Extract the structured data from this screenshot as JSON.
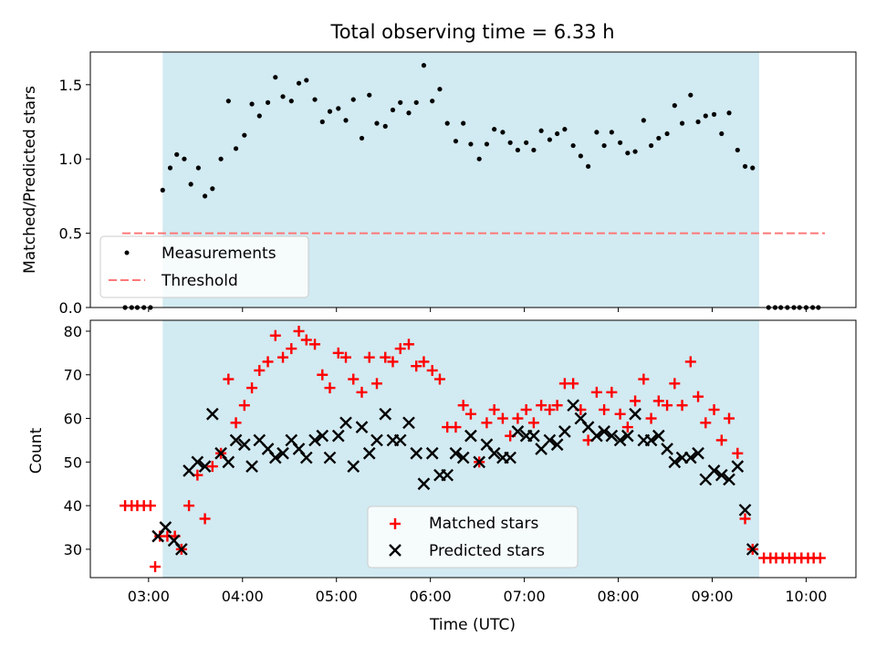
{
  "title": "Total observing time = 6.33 h",
  "xlabel": "Time (UTC)",
  "x_tick_labels": [
    "03:00",
    "04:00",
    "05:00",
    "06:00",
    "07:00",
    "08:00",
    "09:00",
    "10:00"
  ],
  "colors": {
    "shade": "#add8e6",
    "measurements": "#000000",
    "threshold": "#ff7777",
    "matched": "#ff0000",
    "predicted": "#000000"
  },
  "chart_data": [
    {
      "type": "scatter",
      "ylabel": "Matched/Predicted stars",
      "xlim_hours": [
        2.38,
        10.53
      ],
      "ylim": [
        0,
        1.72
      ],
      "y_ticks": [
        0.0,
        0.5,
        1.0,
        1.5
      ],
      "y_tick_labels": [
        "0.0",
        "0.5",
        "1.0",
        "1.5"
      ],
      "observing_window_hours": [
        3.15,
        9.5
      ],
      "legend": {
        "placement": "lower-left",
        "entries": [
          "Measurements",
          "Threshold"
        ]
      },
      "threshold": {
        "value": 0.5,
        "x_range_hours": [
          2.72,
          10.2
        ]
      },
      "series": [
        {
          "name": "Measurements",
          "points": [
            [
              2.75,
              0
            ],
            [
              2.82,
              0
            ],
            [
              2.88,
              0
            ],
            [
              2.95,
              0
            ],
            [
              3.02,
              0
            ],
            [
              3.15,
              0.79
            ],
            [
              3.23,
              0.94
            ],
            [
              3.3,
              1.03
            ],
            [
              3.38,
              1.0
            ],
            [
              3.45,
              0.83
            ],
            [
              3.53,
              0.94
            ],
            [
              3.6,
              0.75
            ],
            [
              3.68,
              0.8
            ],
            [
              3.77,
              1.0
            ],
            [
              3.85,
              1.39
            ],
            [
              3.93,
              1.07
            ],
            [
              4.02,
              1.16
            ],
            [
              4.1,
              1.37
            ],
            [
              4.18,
              1.29
            ],
            [
              4.27,
              1.38
            ],
            [
              4.35,
              1.55
            ],
            [
              4.43,
              1.42
            ],
            [
              4.52,
              1.39
            ],
            [
              4.6,
              1.51
            ],
            [
              4.68,
              1.53
            ],
            [
              4.77,
              1.4
            ],
            [
              4.85,
              1.25
            ],
            [
              4.93,
              1.32
            ],
            [
              5.02,
              1.34
            ],
            [
              5.1,
              1.26
            ],
            [
              5.18,
              1.4
            ],
            [
              5.27,
              1.14
            ],
            [
              5.35,
              1.43
            ],
            [
              5.43,
              1.24
            ],
            [
              5.52,
              1.22
            ],
            [
              5.6,
              1.33
            ],
            [
              5.68,
              1.38
            ],
            [
              5.77,
              1.31
            ],
            [
              5.85,
              1.38
            ],
            [
              5.93,
              1.63
            ],
            [
              6.02,
              1.39
            ],
            [
              6.1,
              1.47
            ],
            [
              6.18,
              1.24
            ],
            [
              6.27,
              1.12
            ],
            [
              6.35,
              1.24
            ],
            [
              6.43,
              1.1
            ],
            [
              6.52,
              1.0
            ],
            [
              6.6,
              1.1
            ],
            [
              6.68,
              1.2
            ],
            [
              6.77,
              1.18
            ],
            [
              6.85,
              1.11
            ],
            [
              6.93,
              1.06
            ],
            [
              7.02,
              1.11
            ],
            [
              7.1,
              1.06
            ],
            [
              7.18,
              1.19
            ],
            [
              7.27,
              1.13
            ],
            [
              7.35,
              1.17
            ],
            [
              7.43,
              1.2
            ],
            [
              7.52,
              1.09
            ],
            [
              7.6,
              1.02
            ],
            [
              7.68,
              0.95
            ],
            [
              7.77,
              1.18
            ],
            [
              7.85,
              1.09
            ],
            [
              7.93,
              1.18
            ],
            [
              8.02,
              1.11
            ],
            [
              8.1,
              1.04
            ],
            [
              8.18,
              1.05
            ],
            [
              8.27,
              1.26
            ],
            [
              8.35,
              1.09
            ],
            [
              8.43,
              1.14
            ],
            [
              8.52,
              1.17
            ],
            [
              8.6,
              1.36
            ],
            [
              8.68,
              1.24
            ],
            [
              8.77,
              1.43
            ],
            [
              8.85,
              1.25
            ],
            [
              8.93,
              1.29
            ],
            [
              9.02,
              1.3
            ],
            [
              9.1,
              1.17
            ],
            [
              9.18,
              1.31
            ],
            [
              9.27,
              1.06
            ],
            [
              9.35,
              0.95
            ],
            [
              9.43,
              0.94
            ],
            [
              9.6,
              0
            ],
            [
              9.67,
              0
            ],
            [
              9.73,
              0
            ],
            [
              9.8,
              0
            ],
            [
              9.87,
              0
            ],
            [
              9.93,
              0
            ],
            [
              10.0,
              0
            ],
            [
              10.07,
              0
            ],
            [
              10.13,
              0
            ]
          ]
        }
      ]
    },
    {
      "type": "scatter",
      "ylabel": "Count",
      "xlim_hours": [
        2.38,
        10.53
      ],
      "ylim": [
        23.5,
        82.5
      ],
      "y_ticks": [
        30,
        40,
        50,
        60,
        70,
        80
      ],
      "y_tick_labels": [
        "30",
        "40",
        "50",
        "60",
        "70",
        "80"
      ],
      "observing_window_hours": [
        3.15,
        9.5
      ],
      "legend": {
        "placement": "lower-center",
        "entries": [
          "Matched stars",
          "Predicted stars"
        ]
      },
      "series": [
        {
          "name": "Matched stars",
          "marker": "plus",
          "points": [
            [
              2.75,
              40
            ],
            [
              2.82,
              40
            ],
            [
              2.88,
              40
            ],
            [
              2.95,
              40
            ],
            [
              3.02,
              40
            ],
            [
              3.07,
              26
            ],
            [
              3.12,
              33
            ],
            [
              3.2,
              33
            ],
            [
              3.28,
              33
            ],
            [
              3.35,
              30
            ],
            [
              3.43,
              40
            ],
            [
              3.52,
              47
            ],
            [
              3.6,
              37
            ],
            [
              3.68,
              49
            ],
            [
              3.77,
              52
            ],
            [
              3.85,
              69
            ],
            [
              3.93,
              59
            ],
            [
              4.02,
              63
            ],
            [
              4.1,
              67
            ],
            [
              4.18,
              71
            ],
            [
              4.27,
              73
            ],
            [
              4.35,
              79
            ],
            [
              4.43,
              74
            ],
            [
              4.52,
              76
            ],
            [
              4.6,
              80
            ],
            [
              4.68,
              78
            ],
            [
              4.77,
              77
            ],
            [
              4.85,
              70
            ],
            [
              4.93,
              67
            ],
            [
              5.02,
              75
            ],
            [
              5.1,
              74
            ],
            [
              5.18,
              69
            ],
            [
              5.27,
              66
            ],
            [
              5.35,
              74
            ],
            [
              5.43,
              68
            ],
            [
              5.52,
              74
            ],
            [
              5.6,
              73
            ],
            [
              5.68,
              76
            ],
            [
              5.77,
              77
            ],
            [
              5.85,
              72
            ],
            [
              5.93,
              73
            ],
            [
              6.02,
              71
            ],
            [
              6.1,
              69
            ],
            [
              6.18,
              58
            ],
            [
              6.27,
              58
            ],
            [
              6.35,
              63
            ],
            [
              6.43,
              61
            ],
            [
              6.52,
              50
            ],
            [
              6.6,
              59
            ],
            [
              6.68,
              62
            ],
            [
              6.77,
              60
            ],
            [
              6.85,
              56
            ],
            [
              6.93,
              60
            ],
            [
              7.02,
              62
            ],
            [
              7.1,
              59
            ],
            [
              7.18,
              63
            ],
            [
              7.27,
              62
            ],
            [
              7.35,
              63
            ],
            [
              7.43,
              68
            ],
            [
              7.52,
              68
            ],
            [
              7.6,
              62
            ],
            [
              7.68,
              55
            ],
            [
              7.77,
              66
            ],
            [
              7.85,
              62
            ],
            [
              7.93,
              66
            ],
            [
              8.02,
              61
            ],
            [
              8.1,
              58
            ],
            [
              8.18,
              64
            ],
            [
              8.27,
              69
            ],
            [
              8.35,
              60
            ],
            [
              8.43,
              64
            ],
            [
              8.52,
              63
            ],
            [
              8.6,
              68
            ],
            [
              8.68,
              63
            ],
            [
              8.77,
              73
            ],
            [
              8.85,
              65
            ],
            [
              8.93,
              59
            ],
            [
              9.02,
              62
            ],
            [
              9.1,
              55
            ],
            [
              9.18,
              60
            ],
            [
              9.27,
              52
            ],
            [
              9.35,
              37
            ],
            [
              9.43,
              30
            ],
            [
              9.55,
              28
            ],
            [
              9.62,
              28
            ],
            [
              9.68,
              28
            ],
            [
              9.75,
              28
            ],
            [
              9.82,
              28
            ],
            [
              9.88,
              28
            ],
            [
              9.95,
              28
            ],
            [
              10.02,
              28
            ],
            [
              10.08,
              28
            ],
            [
              10.15,
              28
            ]
          ]
        },
        {
          "name": "Predicted stars",
          "marker": "x",
          "points": [
            [
              3.1,
              33
            ],
            [
              3.18,
              35
            ],
            [
              3.27,
              32
            ],
            [
              3.35,
              30
            ],
            [
              3.43,
              48
            ],
            [
              3.52,
              50
            ],
            [
              3.6,
              49
            ],
            [
              3.68,
              61
            ],
            [
              3.77,
              52
            ],
            [
              3.85,
              50
            ],
            [
              3.93,
              55
            ],
            [
              4.02,
              54
            ],
            [
              4.1,
              49
            ],
            [
              4.18,
              55
            ],
            [
              4.27,
              53
            ],
            [
              4.35,
              51
            ],
            [
              4.43,
              52
            ],
            [
              4.52,
              55
            ],
            [
              4.6,
              53
            ],
            [
              4.68,
              51
            ],
            [
              4.77,
              55
            ],
            [
              4.85,
              56
            ],
            [
              4.93,
              51
            ],
            [
              5.02,
              56
            ],
            [
              5.1,
              59
            ],
            [
              5.18,
              49
            ],
            [
              5.27,
              58
            ],
            [
              5.35,
              52
            ],
            [
              5.43,
              55
            ],
            [
              5.52,
              61
            ],
            [
              5.6,
              55
            ],
            [
              5.68,
              55
            ],
            [
              5.77,
              59
            ],
            [
              5.85,
              52
            ],
            [
              5.93,
              45
            ],
            [
              6.02,
              52
            ],
            [
              6.1,
              47
            ],
            [
              6.18,
              47
            ],
            [
              6.27,
              52
            ],
            [
              6.35,
              51
            ],
            [
              6.43,
              56
            ],
            [
              6.52,
              50
            ],
            [
              6.6,
              54
            ],
            [
              6.68,
              52
            ],
            [
              6.77,
              51
            ],
            [
              6.85,
              51
            ],
            [
              6.93,
              57
            ],
            [
              7.02,
              56
            ],
            [
              7.1,
              56
            ],
            [
              7.18,
              53
            ],
            [
              7.27,
              55
            ],
            [
              7.35,
              54
            ],
            [
              7.43,
              57
            ],
            [
              7.52,
              63
            ],
            [
              7.6,
              60
            ],
            [
              7.68,
              58
            ],
            [
              7.77,
              56
            ],
            [
              7.85,
              57
            ],
            [
              7.93,
              56
            ],
            [
              8.02,
              55
            ],
            [
              8.1,
              56
            ],
            [
              8.18,
              61
            ],
            [
              8.27,
              55
            ],
            [
              8.35,
              55
            ],
            [
              8.43,
              56
            ],
            [
              8.52,
              53
            ],
            [
              8.6,
              50
            ],
            [
              8.68,
              51
            ],
            [
              8.77,
              51
            ],
            [
              8.85,
              52
            ],
            [
              8.93,
              46
            ],
            [
              9.02,
              48
            ],
            [
              9.1,
              47
            ],
            [
              9.18,
              46
            ],
            [
              9.27,
              49
            ],
            [
              9.35,
              39
            ],
            [
              9.43,
              30
            ]
          ]
        }
      ]
    }
  ]
}
